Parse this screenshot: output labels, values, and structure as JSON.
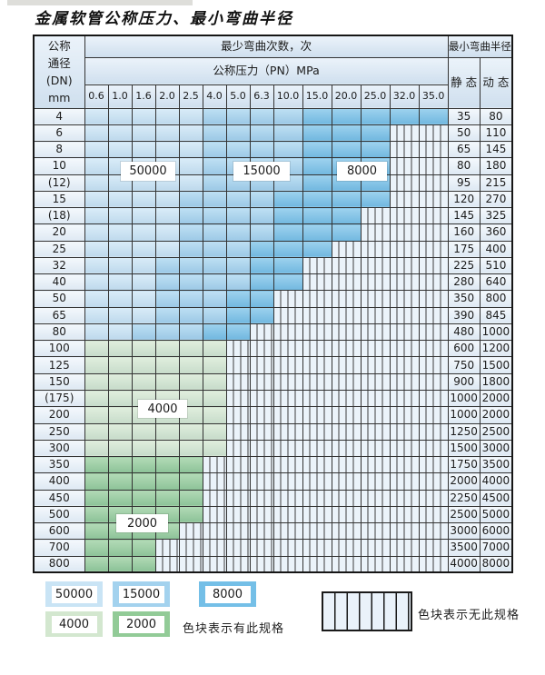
{
  "title": "金属软管公称压力、最小弯曲半径",
  "table": {
    "corner_header_lines": [
      "公称",
      "通径",
      "(DN)",
      "mm"
    ],
    "bend_cycles_header": "最少弯曲次数，次",
    "pressure_header": "公称压力（PN）MPa",
    "radius_header": "最小弯曲半径",
    "static_header": "静 态",
    "dynamic_header": "动 态",
    "pressure_columns": [
      "0.6",
      "1.0",
      "1.6",
      "2.0",
      "2.5",
      "4.0",
      "5.0",
      "6.3",
      "10.0",
      "15.0",
      "20.0",
      "25.0",
      "32.0",
      "35.0"
    ],
    "rows": [
      {
        "dn": "4",
        "static": "35",
        "dynamic": "80",
        "bands": [
          [
            "50000",
            5
          ],
          [
            "15000",
            4
          ],
          [
            "8000",
            5
          ]
        ]
      },
      {
        "dn": "6",
        "static": "50",
        "dynamic": "110",
        "bands": [
          [
            "50000",
            5
          ],
          [
            "15000",
            4
          ],
          [
            "8000",
            3
          ]
        ]
      },
      {
        "dn": "8",
        "static": "65",
        "dynamic": "145",
        "bands": [
          [
            "50000",
            5
          ],
          [
            "15000",
            4
          ],
          [
            "8000",
            3
          ]
        ]
      },
      {
        "dn": "10",
        "static": "80",
        "dynamic": "180",
        "bands": [
          [
            "50000",
            5
          ],
          [
            "15000",
            4
          ],
          [
            "8000",
            3
          ]
        ]
      },
      {
        "dn": "(12)",
        "static": "95",
        "dynamic": "215",
        "bands": [
          [
            "50000",
            5
          ],
          [
            "15000",
            4
          ],
          [
            "8000",
            3
          ]
        ]
      },
      {
        "dn": "15",
        "static": "120",
        "dynamic": "270",
        "bands": [
          [
            "50000",
            4
          ],
          [
            "15000",
            4
          ],
          [
            "8000",
            4
          ]
        ]
      },
      {
        "dn": "(18)",
        "static": "145",
        "dynamic": "325",
        "bands": [
          [
            "50000",
            4
          ],
          [
            "15000",
            4
          ],
          [
            "8000",
            3
          ]
        ]
      },
      {
        "dn": "20",
        "static": "160",
        "dynamic": "360",
        "bands": [
          [
            "50000",
            4
          ],
          [
            "15000",
            4
          ],
          [
            "8000",
            3
          ]
        ]
      },
      {
        "dn": "25",
        "static": "175",
        "dynamic": "400",
        "bands": [
          [
            "50000",
            4
          ],
          [
            "15000",
            3
          ],
          [
            "8000",
            3
          ]
        ]
      },
      {
        "dn": "32",
        "static": "225",
        "dynamic": "510",
        "bands": [
          [
            "50000",
            3
          ],
          [
            "15000",
            4
          ],
          [
            "8000",
            2
          ]
        ]
      },
      {
        "dn": "40",
        "static": "280",
        "dynamic": "640",
        "bands": [
          [
            "50000",
            3
          ],
          [
            "15000",
            4
          ],
          [
            "8000",
            2
          ]
        ]
      },
      {
        "dn": "50",
        "static": "350",
        "dynamic": "800",
        "bands": [
          [
            "50000",
            3
          ],
          [
            "15000",
            3
          ],
          [
            "8000",
            2
          ]
        ]
      },
      {
        "dn": "65",
        "static": "390",
        "dynamic": "845",
        "bands": [
          [
            "50000",
            3
          ],
          [
            "15000",
            3
          ],
          [
            "8000",
            2
          ]
        ]
      },
      {
        "dn": "80",
        "static": "480",
        "dynamic": "1000",
        "bands": [
          [
            "50000",
            2
          ],
          [
            "15000",
            3
          ],
          [
            "8000",
            2
          ]
        ]
      },
      {
        "dn": "100",
        "static": "600",
        "dynamic": "1200",
        "bands": [
          [
            "4000",
            6
          ]
        ]
      },
      {
        "dn": "125",
        "static": "750",
        "dynamic": "1500",
        "bands": [
          [
            "4000",
            6
          ]
        ]
      },
      {
        "dn": "150",
        "static": "900",
        "dynamic": "1800",
        "bands": [
          [
            "4000",
            6
          ]
        ]
      },
      {
        "dn": "(175)",
        "static": "1000",
        "dynamic": "2000",
        "bands": [
          [
            "4000",
            6
          ]
        ]
      },
      {
        "dn": "200",
        "static": "1000",
        "dynamic": "2000",
        "bands": [
          [
            "4000",
            6
          ]
        ]
      },
      {
        "dn": "250",
        "static": "1250",
        "dynamic": "2500",
        "bands": [
          [
            "4000",
            6
          ]
        ]
      },
      {
        "dn": "300",
        "static": "1500",
        "dynamic": "3000",
        "bands": [
          [
            "4000",
            6
          ]
        ]
      },
      {
        "dn": "350",
        "static": "1750",
        "dynamic": "3500",
        "bands": [
          [
            "2000",
            5
          ]
        ]
      },
      {
        "dn": "400",
        "static": "2000",
        "dynamic": "4000",
        "bands": [
          [
            "2000",
            5
          ]
        ]
      },
      {
        "dn": "450",
        "static": "2250",
        "dynamic": "4500",
        "bands": [
          [
            "2000",
            5
          ]
        ]
      },
      {
        "dn": "500",
        "static": "2500",
        "dynamic": "5000",
        "bands": [
          [
            "2000",
            5
          ]
        ]
      },
      {
        "dn": "600",
        "static": "3000",
        "dynamic": "6000",
        "bands": [
          [
            "2000",
            4
          ]
        ]
      },
      {
        "dn": "700",
        "static": "3500",
        "dynamic": "7000",
        "bands": [
          [
            "2000",
            3
          ]
        ]
      },
      {
        "dn": "800",
        "static": "4000",
        "dynamic": "8000",
        "bands": [
          [
            "2000",
            3
          ]
        ]
      }
    ]
  },
  "overlays": [
    {
      "id": "ov-50000",
      "text": "50000"
    },
    {
      "id": "ov-15000",
      "text": "15000"
    },
    {
      "id": "ov-8000",
      "text": "8000"
    },
    {
      "id": "ov-4000",
      "text": "4000"
    },
    {
      "id": "ov-2000",
      "text": "2000"
    }
  ],
  "legend": {
    "chips": [
      {
        "label": "50000",
        "band": "50000"
      },
      {
        "label": "15000",
        "band": "15000"
      },
      {
        "label": "8000",
        "band": "8000"
      },
      {
        "label": "4000",
        "band": "4000"
      },
      {
        "label": "2000",
        "band": "2000"
      }
    ],
    "has_spec_text": "色块表示有此规格",
    "no_spec_text": "色块表示无此规格"
  },
  "colors": {
    "band_50000": "#c9e4f5",
    "band_15000": "#a3d2ee",
    "band_8000": "#74bfe7",
    "band_4000": "#d3e7cf",
    "band_2000": "#92cb97",
    "no_spec_cell_bg": "#ebf3fa",
    "stripe_line": "#3d3d3d",
    "header_bg": "#dbe9f6",
    "label_cell_bg": "#e9f2fa",
    "grid_border": "#333333"
  }
}
